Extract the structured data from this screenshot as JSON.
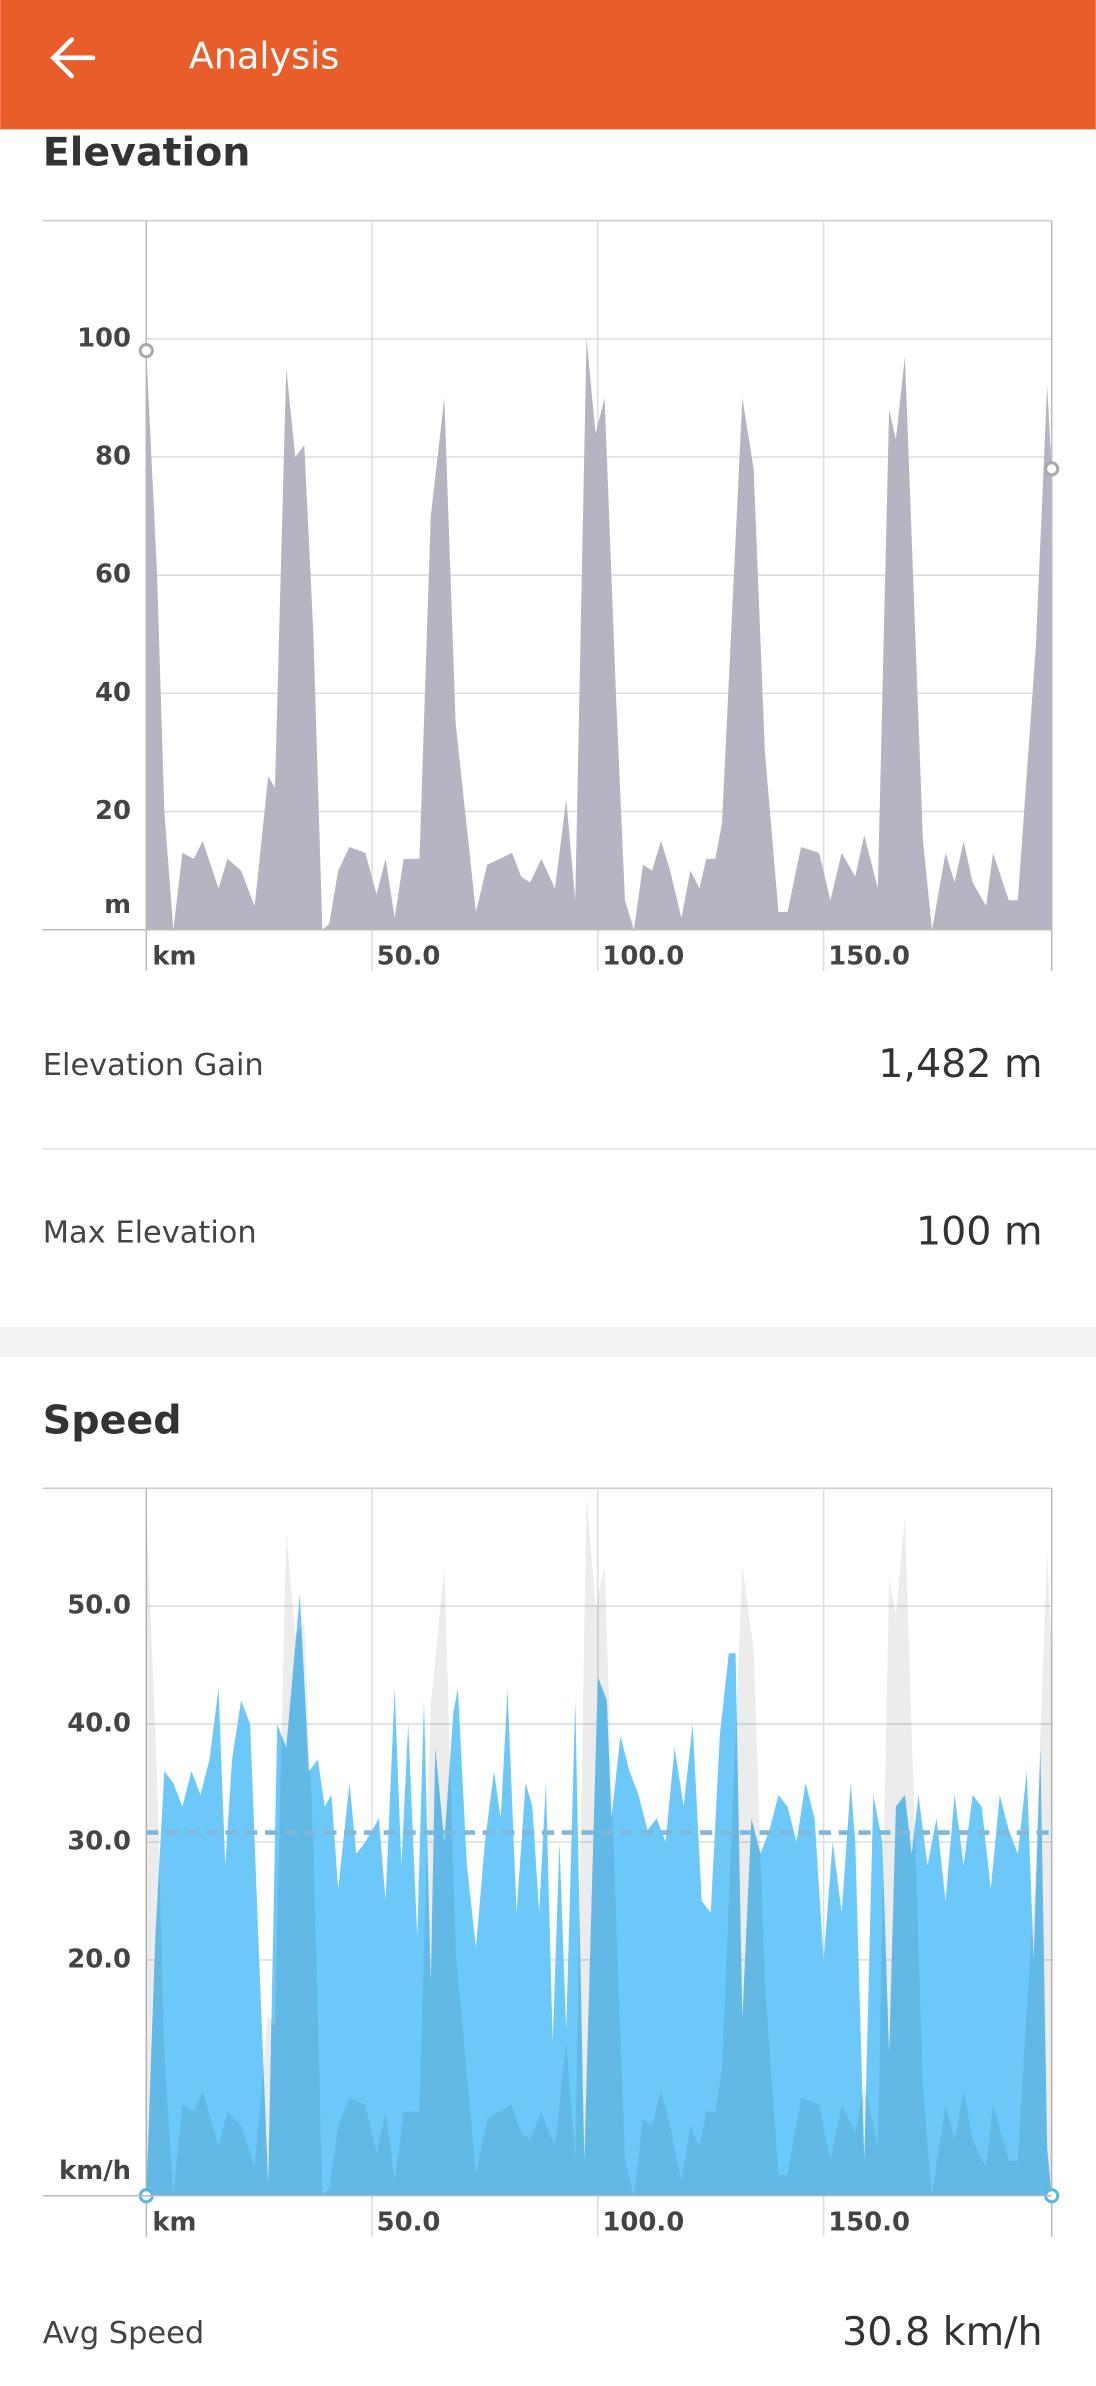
{
  "header": {
    "title": "Analysis"
  },
  "sections": [
    {
      "heading": "Elevation",
      "stats": [
        {
          "label": "Elevation Gain",
          "value": "1,482 m"
        },
        {
          "label": "Max Elevation",
          "value": "100 m"
        }
      ]
    },
    {
      "heading": "Speed",
      "stats": [
        {
          "label": "Avg Speed",
          "value": "30.8 km/h"
        }
      ]
    }
  ],
  "chart_data": [
    {
      "type": "area",
      "color": "#b5b4c3",
      "x_unit": "km",
      "y_unit": "m",
      "xlim": [
        0,
        200.5
      ],
      "ylim": [
        0,
        120
      ],
      "xticks": [
        {
          "value": 50,
          "label": "50.0"
        },
        {
          "value": 100,
          "label": "100.0"
        },
        {
          "value": 150,
          "label": "150.0"
        }
      ],
      "yticks": [
        20,
        40,
        60,
        80,
        100
      ],
      "grid": true,
      "x": [
        0,
        2.4,
        4,
        6,
        8,
        10.5,
        12.5,
        16,
        18,
        21,
        24,
        27,
        28.5,
        31,
        33,
        35,
        37,
        39,
        40.5,
        42.5,
        45,
        48.5,
        51,
        53,
        55,
        57,
        60.5,
        63,
        66,
        68.5,
        73,
        75.5,
        81,
        83,
        85,
        87.5,
        90.5,
        93,
        95,
        97.5,
        99.5,
        101.5,
        104,
        106,
        108,
        110,
        112,
        114,
        116,
        118.5,
        120.5,
        122.5,
        124,
        126,
        127.5,
        132,
        134.5,
        137,
        140,
        142,
        145,
        149,
        151.5,
        154,
        157,
        159,
        162,
        164.5,
        166,
        168,
        172,
        174,
        177,
        179,
        181,
        183,
        186,
        187.5,
        191,
        193,
        197,
        199.5,
        200.5
      ],
      "values": [
        98,
        60,
        20,
        0,
        13,
        12,
        15,
        7,
        12,
        10,
        4,
        26,
        24,
        95,
        80,
        82,
        50,
        0,
        1,
        10,
        14,
        13,
        6,
        12,
        2,
        12,
        12,
        70,
        90,
        35,
        3,
        11,
        13,
        9,
        8,
        12,
        7,
        22,
        5,
        100,
        84,
        90,
        40,
        5,
        0,
        11,
        10,
        15,
        10,
        2,
        10,
        7,
        12,
        12,
        18,
        90,
        78,
        30,
        3,
        3,
        14,
        13,
        5,
        13,
        9,
        16,
        7,
        88,
        83,
        97,
        15,
        0,
        13,
        8,
        15,
        8,
        4,
        13,
        5,
        5,
        48,
        92,
        78
      ]
    },
    {
      "type": "area",
      "color": "#6cc8f8",
      "x_unit": "km",
      "y_unit": "km/h",
      "avg_line": 30.8,
      "avg_color": "#7fb8dc",
      "xlim": [
        0,
        200.5
      ],
      "ylim": [
        0,
        60
      ],
      "xticks": [
        {
          "value": 50,
          "label": "50.0"
        },
        {
          "value": 100,
          "label": "100.0"
        },
        {
          "value": 150,
          "label": "150.0"
        }
      ],
      "yticks": [
        {
          "value": 20,
          "label": "20.0"
        },
        {
          "value": 30,
          "label": "30.0"
        },
        {
          "value": 40,
          "label": "40.0"
        },
        {
          "value": 50,
          "label": "50.0"
        }
      ],
      "grid": true,
      "x": [
        0,
        2,
        4,
        6,
        8,
        10,
        12,
        14,
        16,
        17.5,
        19,
        21,
        23,
        25,
        27,
        29,
        31,
        34,
        36,
        38,
        39.5,
        41,
        42.5,
        45,
        46.5,
        48.5,
        50,
        51.5,
        53,
        55,
        56.5,
        58,
        60,
        61.5,
        63,
        64,
        66,
        68,
        69,
        71,
        73,
        75,
        77,
        78.5,
        80,
        82,
        84,
        85.5,
        87,
        88.5,
        90,
        91.5,
        93,
        95,
        97,
        100,
        102,
        103,
        105,
        107,
        109,
        111,
        113,
        115,
        117,
        119,
        121,
        123,
        125,
        127,
        129,
        130.5,
        132,
        134,
        136,
        138,
        140,
        142,
        144,
        146,
        148,
        150,
        152,
        154,
        156,
        157,
        159,
        161,
        163,
        164.5,
        166,
        168,
        169.5,
        171,
        173,
        175,
        177,
        179,
        181,
        183,
        185,
        187,
        189,
        191,
        193,
        195,
        196.5,
        198,
        199.5,
        200.5
      ],
      "values": [
        0,
        22,
        36,
        35,
        33,
        36,
        34,
        37,
        43,
        28,
        37,
        42,
        40,
        20,
        1,
        40,
        38,
        51,
        36,
        37,
        33,
        34,
        26,
        35,
        29,
        30,
        31,
        32,
        25,
        43,
        28,
        40,
        22,
        42,
        18,
        38,
        30,
        41,
        43,
        28,
        21,
        30,
        36,
        32,
        43,
        24,
        35,
        33,
        24,
        35,
        13,
        30,
        14,
        42,
        3,
        44,
        42,
        32,
        39,
        36,
        34,
        31,
        32,
        30,
        38,
        33,
        40,
        25,
        24,
        39,
        46,
        46,
        15,
        32,
        29,
        31,
        34,
        33,
        30,
        35,
        32,
        20,
        30,
        24,
        35,
        30,
        3,
        34,
        30,
        12,
        33,
        34,
        29,
        34,
        28,
        32,
        25,
        34,
        28,
        34,
        33,
        26,
        34,
        31,
        29,
        36,
        20,
        38,
        4,
        0
      ]
    }
  ]
}
